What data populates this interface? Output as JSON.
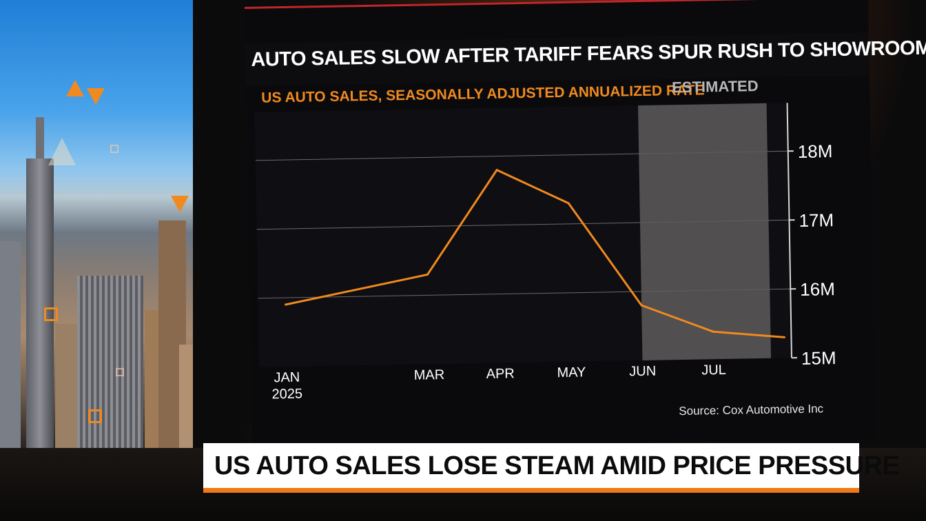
{
  "headline": "AUTO SALES SLOW AFTER TARIFF FEARS SPUR RUSH TO SHOWROOMS",
  "lower_third": "US AUTO SALES LOSE STEAM AMID PRICE PRESSURE",
  "source": "Source: Cox Automotive Inc",
  "colors": {
    "accent": "#f08a1e",
    "estimate_shade": "#5e5b5c",
    "background": "#0a0a0d",
    "top_rule": "#c0262a"
  },
  "chart_data": {
    "type": "line",
    "title": "US AUTO SALES, SEASONALLY ADJUSTED ANNUALIZED RATE",
    "estimated_label": "ESTIMATED",
    "x": [
      "2025-01",
      "2025-03",
      "2025-04",
      "2025-05",
      "2025-06",
      "2025-07",
      "2025-08"
    ],
    "x_tick_labels": [
      {
        "x": "2025-01",
        "lines": [
          "JAN",
          "2025"
        ]
      },
      {
        "x": "2025-03",
        "lines": [
          "MAR"
        ]
      },
      {
        "x": "2025-04",
        "lines": [
          "APR"
        ]
      },
      {
        "x": "2025-05",
        "lines": [
          "MAY"
        ]
      },
      {
        "x": "2025-06",
        "lines": [
          "JUN"
        ]
      },
      {
        "x": "2025-07",
        "lines": [
          "JUL"
        ]
      }
    ],
    "series": [
      {
        "values": [
          15.9,
          16.3,
          17.8,
          17.3,
          15.8,
          15.4,
          15.3
        ]
      }
    ],
    "estimated_from": "2025-06",
    "ylim": [
      15,
      18.6
    ],
    "y_ticks": [
      15,
      16,
      17,
      18
    ],
    "y_tick_labels": [
      "15M",
      "16M",
      "17M",
      "18M"
    ],
    "y_axis_side": "right",
    "grid": true
  }
}
